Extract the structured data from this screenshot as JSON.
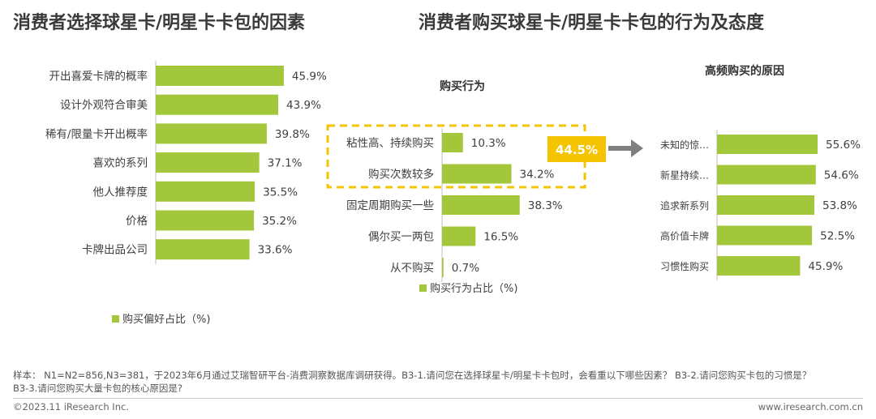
{
  "titles": {
    "left": "消费者选择球星卡/明星卡卡包的因素",
    "right": "消费者购买球星卡/明星卡卡包的行为及态度"
  },
  "colors": {
    "bar": "#a3c73a",
    "highlight": "#f5c400",
    "arrow": "#7f7f7f",
    "text": "#404040"
  },
  "chart_data": [
    {
      "type": "bar",
      "orientation": "horizontal",
      "title": "",
      "categories": [
        "开出喜爱卡牌的概率",
        "设计外观符合审美",
        "稀有/限量卡开出概率",
        "喜欢的系列",
        "他人推荐度",
        "价格",
        "卡牌出品公司"
      ],
      "series": [
        {
          "name": "购买偏好占比（%)",
          "values": [
            45.9,
            43.9,
            39.8,
            37.1,
            35.5,
            35.2,
            33.6
          ]
        }
      ],
      "value_labels": [
        "45.9%",
        "43.9%",
        "39.8%",
        "37.1%",
        "35.5%",
        "35.2%",
        "33.6%"
      ],
      "xlim": [
        0,
        50
      ],
      "legend": "bottom"
    },
    {
      "type": "bar",
      "orientation": "horizontal",
      "title": "购买行为",
      "categories": [
        "粘性高、持续购买",
        "购买次数较多",
        "固定周期购买一些",
        "偶尔买一两包",
        "从不购买"
      ],
      "series": [
        {
          "name": "购买行为占比（%)",
          "values": [
            10.3,
            34.2,
            38.3,
            16.5,
            0.7
          ]
        }
      ],
      "value_labels": [
        "10.3%",
        "34.2%",
        "38.3%",
        "16.5%",
        "0.7%"
      ],
      "xlim": [
        0,
        50
      ],
      "legend": "bottom",
      "annotation": {
        "label": "44.5%",
        "value": 44.5,
        "covers": [
          "粘性高、持续购买",
          "购买次数较多"
        ]
      }
    },
    {
      "type": "bar",
      "orientation": "horizontal",
      "title": "高频购买的原因",
      "categories": [
        "未知的惊…",
        "新星持续…",
        "追求新系列",
        "高价值卡牌",
        "习惯性购买"
      ],
      "series": [
        {
          "name": "",
          "values": [
            55.6,
            54.6,
            53.8,
            52.5,
            45.9
          ]
        }
      ],
      "value_labels": [
        "55.6%",
        "54.6%",
        "53.8%",
        "52.5%",
        "45.9%"
      ],
      "xlim": [
        0,
        65
      ]
    }
  ],
  "footer": {
    "note": "样本： N1=N2=856,N3=381，于2023年6月通过艾瑞智研平台-消费洞察数据库调研获得。B3-1.请问您在选择球星卡/明星卡卡包时，会看重以下哪些因素？ B3-2.请问您购买卡包的习惯是？ B3-3.请问您购买大量卡包的核心原因是?",
    "copyright": "©2023.11 iResearch Inc.",
    "url": "www.iresearch.com.cn"
  }
}
